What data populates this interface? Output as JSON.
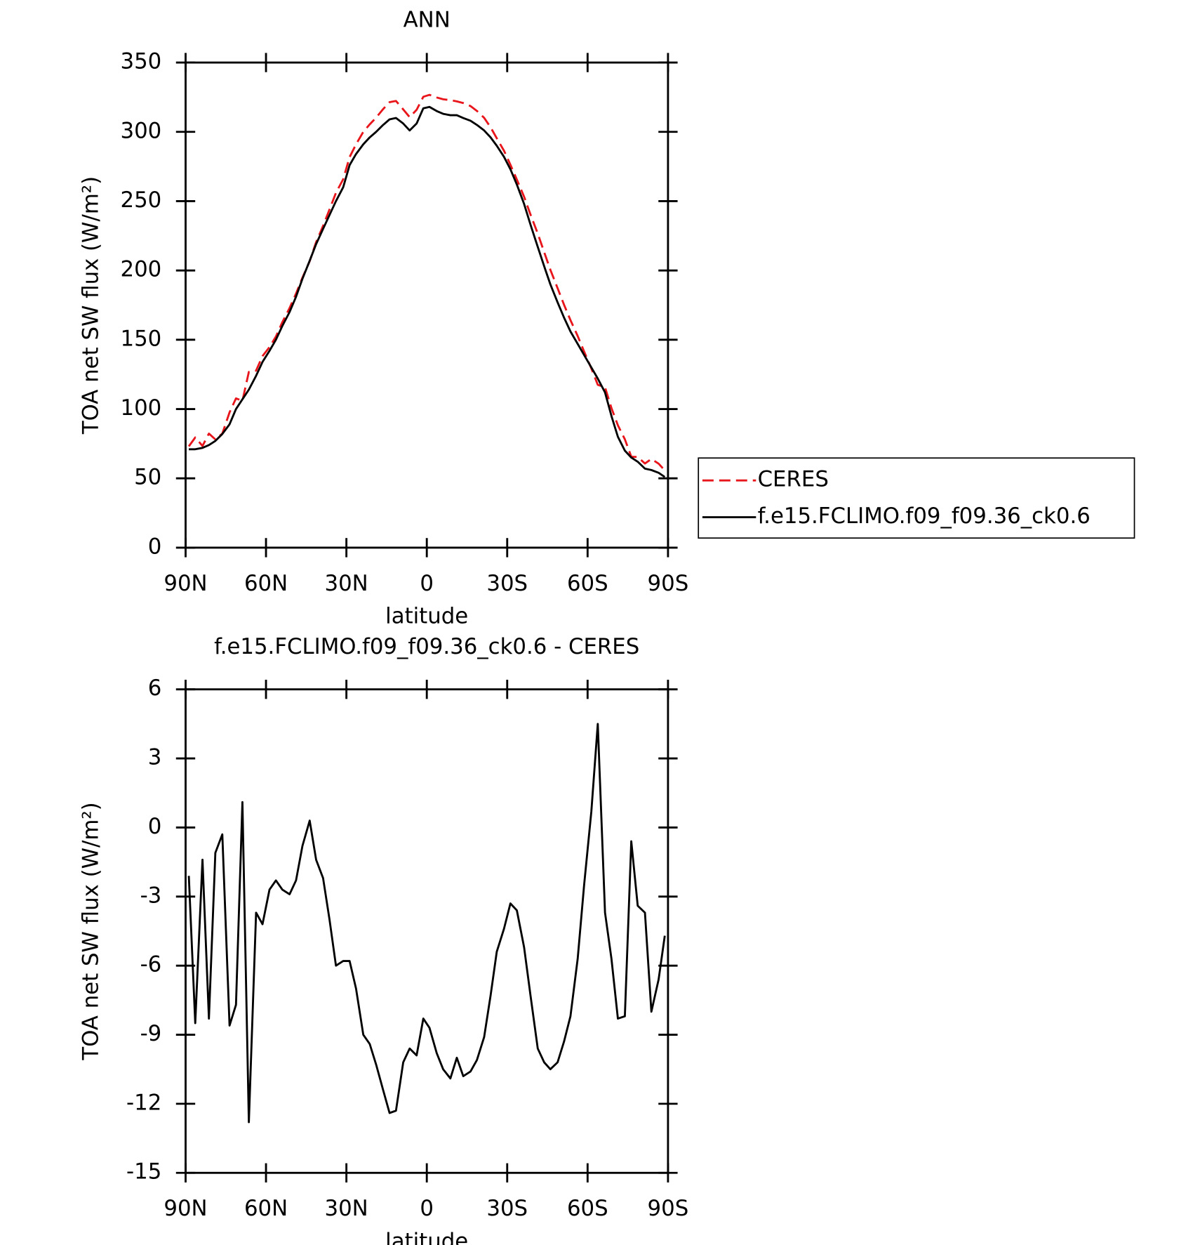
{
  "chart_data": [
    {
      "type": "line",
      "title": "ANN",
      "xlabel": "latitude",
      "ylabel": "TOA net SW flux (W/m²)",
      "x": [
        88.8,
        86.4,
        83.7,
        81.3,
        78.9,
        76.3,
        73.6,
        71.2,
        68.8,
        66.4,
        63.7,
        61.3,
        58.7,
        56.3,
        53.9,
        51.2,
        48.8,
        46.4,
        43.7,
        41.3,
        38.7,
        36.3,
        33.9,
        31.2,
        28.8,
        26.4,
        23.7,
        21.3,
        18.9,
        16.3,
        13.9,
        11.5,
        8.8,
        6.4,
        3.8,
        1.3,
        -1.0,
        -3.7,
        -6.1,
        -8.8,
        -11.2,
        -13.6,
        -16.3,
        -18.7,
        -21.4,
        -23.8,
        -26.1,
        -28.8,
        -31.2,
        -33.6,
        -36.3,
        -38.7,
        -41.4,
        -43.8,
        -46.1,
        -48.8,
        -51.2,
        -53.6,
        -56.3,
        -58.7,
        -61.4,
        -63.8,
        -66.5,
        -68.9,
        -71.3,
        -73.9,
        -76.3,
        -78.7,
        -81.4,
        -83.8,
        -86.5,
        -88.8
      ],
      "series": [
        {
          "name": "CERES",
          "color": "#e8151b",
          "dashed": true,
          "values": [
            73.1,
            79.5,
            73.4,
            82.3,
            78.1,
            82.3,
            97.6,
            107.7,
            105.9,
            126.8,
            127.7,
            138.2,
            144.7,
            152.3,
            162.7,
            172.9,
            183.3,
            194.8,
            206.7,
            220.4,
            232.2,
            244,
            256,
            265.8,
            281.8,
            291,
            300,
            305.4,
            310.3,
            316.4,
            321.4,
            322.3,
            316.2,
            310.6,
            315.9,
            325.3,
            326.7,
            324.8,
            323.5,
            322.9,
            322,
            320.8,
            318.6,
            315.1,
            310.1,
            303.3,
            295.4,
            286.4,
            276.3,
            265.6,
            253.2,
            240.3,
            226.6,
            213.2,
            200.5,
            187.2,
            175.3,
            164.2,
            152.7,
            141.5,
            129.3,
            117.5,
            115.7,
            100.7,
            88.3,
            78.2,
            65.6,
            65.4,
            60.7,
            64,
            60.6,
            55.7
          ]
        },
        {
          "name": "f.e15.FCLIMO.f09_f09.36_ck0.6",
          "color": "#000000",
          "dashed": false,
          "values": [
            71,
            71,
            72,
            74,
            77,
            82,
            89,
            100,
            107,
            114,
            124,
            134,
            142,
            150,
            160,
            170,
            181,
            194,
            207,
            219,
            230,
            240,
            250,
            260,
            276,
            284,
            291,
            296,
            300,
            305,
            309,
            310,
            306,
            301,
            306,
            317,
            318,
            315,
            313,
            312,
            312,
            310,
            308,
            305,
            301,
            296,
            290,
            282,
            273,
            262,
            248,
            233,
            217,
            203,
            190,
            177,
            166,
            156,
            147,
            139,
            130,
            122,
            112,
            95,
            80,
            70,
            65,
            62,
            57,
            56,
            54,
            51
          ]
        }
      ],
      "xlim": [
        90,
        -90
      ],
      "xticks": [
        {
          "value": 90,
          "label": "90N"
        },
        {
          "value": 60,
          "label": "60N"
        },
        {
          "value": 30,
          "label": "30N"
        },
        0,
        {
          "value": -30,
          "label": "30S"
        },
        {
          "value": -60,
          "label": "60S"
        },
        {
          "value": -90,
          "label": "90S"
        }
      ],
      "ylim": [
        0,
        350
      ],
      "yticks": [
        0,
        50,
        100,
        150,
        200,
        250,
        300,
        350
      ],
      "legend": "right"
    },
    {
      "type": "line",
      "title": "f.e15.FCLIMO.f09_f09.36_ck0.6 - CERES",
      "xlabel": "latitude",
      "ylabel": "TOA net SW flux (W/m²)",
      "x": [
        88.8,
        86.4,
        83.7,
        81.3,
        78.9,
        76.3,
        73.6,
        71.2,
        68.8,
        66.4,
        63.7,
        61.3,
        58.7,
        56.3,
        53.9,
        51.2,
        48.8,
        46.4,
        43.7,
        41.3,
        38.7,
        36.3,
        33.9,
        31.2,
        28.8,
        26.4,
        23.7,
        21.3,
        18.9,
        16.3,
        13.9,
        11.5,
        8.8,
        6.4,
        3.8,
        1.3,
        -1.0,
        -3.7,
        -6.1,
        -8.8,
        -11.2,
        -13.6,
        -16.3,
        -18.7,
        -21.4,
        -23.8,
        -26.1,
        -28.8,
        -31.2,
        -33.6,
        -36.3,
        -38.7,
        -41.4,
        -43.8,
        -46.1,
        -48.8,
        -51.2,
        -53.6,
        -56.3,
        -58.7,
        -61.4,
        -63.8,
        -66.5,
        -68.9,
        -71.3,
        -73.9,
        -76.3,
        -78.7,
        -81.4,
        -83.8,
        -86.5,
        -88.8
      ],
      "color": "#000000",
      "values": [
        -2.1,
        -8.5,
        -1.4,
        -8.3,
        -1.1,
        -0.3,
        -8.6,
        -7.7,
        1.1,
        -12.8,
        -3.7,
        -4.2,
        -2.7,
        -2.3,
        -2.7,
        -2.9,
        -2.3,
        -0.8,
        0.3,
        -1.4,
        -2.2,
        -4.0,
        -6.0,
        -5.8,
        -5.8,
        -7.0,
        -9.0,
        -9.4,
        -10.3,
        -11.4,
        -12.4,
        -12.3,
        -10.2,
        -9.6,
        -9.9,
        -8.3,
        -8.7,
        -9.8,
        -10.5,
        -10.9,
        -10.0,
        -10.8,
        -10.6,
        -10.1,
        -9.1,
        -7.3,
        -5.4,
        -4.4,
        -3.3,
        -3.6,
        -5.2,
        -7.3,
        -9.6,
        -10.2,
        -10.5,
        -10.2,
        -9.3,
        -8.2,
        -5.7,
        -2.5,
        0.7,
        4.5,
        -3.7,
        -5.7,
        -8.3,
        -8.2,
        -0.6,
        -3.4,
        -3.7,
        -8.0,
        -6.6,
        -4.7
      ],
      "xlim": [
        90,
        -90
      ],
      "xticks": [
        {
          "value": 90,
          "label": "90N"
        },
        {
          "value": 60,
          "label": "60N"
        },
        {
          "value": 30,
          "label": "30N"
        },
        0,
        {
          "value": -30,
          "label": "30S"
        },
        {
          "value": -60,
          "label": "60S"
        },
        {
          "value": -90,
          "label": "90S"
        }
      ],
      "ylim": [
        -15,
        6
      ],
      "yticks": [
        -15,
        -12,
        -9,
        -6,
        -3,
        0,
        3,
        6
      ]
    }
  ]
}
